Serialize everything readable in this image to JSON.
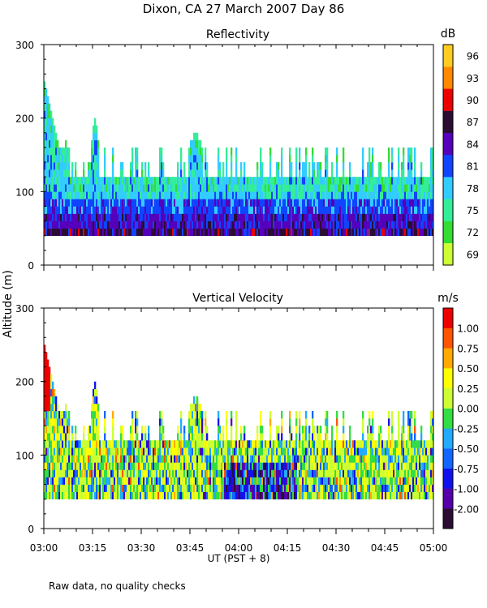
{
  "chart_data": {
    "title": "Dixon, CA 27 March 2007  Day  86",
    "ylabel": "Altitude  (m)",
    "xlabel": "UT  (PST + 8)",
    "footnote": "Raw data, no quality checks",
    "x_ticks": [
      "03:00",
      "03:15",
      "03:30",
      "03:45",
      "04:00",
      "04:15",
      "04:30",
      "04:45",
      "05:00"
    ],
    "x_range_minutes": [
      0,
      120
    ],
    "panels": [
      {
        "type": "heatmap",
        "title": "Reflectivity",
        "ylim": [
          0,
          300
        ],
        "y_ticks": [
          "0",
          "100",
          "200",
          "300"
        ],
        "colorbar": {
          "unit": "dB",
          "labels": [
            "69",
            "72",
            "75",
            "78",
            "81",
            "84",
            "87",
            "90",
            "93",
            "96"
          ],
          "colors": [
            "#ccff33",
            "#33dd33",
            "#33ee99",
            "#33ccff",
            "#1144ff",
            "#5500bb",
            "#2a0d33",
            "#ee0000",
            "#ff8800",
            "#ffcc22"
          ]
        },
        "data_floor_m": 40,
        "typical_top_m": 120,
        "max_top_m": 240
      },
      {
        "type": "heatmap",
        "title": "Vertical Velocity",
        "ylim": [
          0,
          300
        ],
        "y_ticks": [
          "0",
          "100",
          "200",
          "300"
        ],
        "colorbar": {
          "unit": "m/s",
          "labels": [
            "-2.00",
            "-1.00",
            "-0.75",
            "-0.50",
            "-0.25",
            "0.00",
            "0.25",
            "0.50",
            "0.75",
            "1.00"
          ],
          "colors": [
            "#2a0d33",
            "#5500aa",
            "#1111ee",
            "#1166ff",
            "#22aaff",
            "#33dd44",
            "#ccff33",
            "#ffff00",
            "#ffaa00",
            "#ff5500",
            "#ee0000"
          ]
        },
        "data_floor_m": 40,
        "typical_top_m": 120,
        "max_top_m": 240
      }
    ]
  }
}
